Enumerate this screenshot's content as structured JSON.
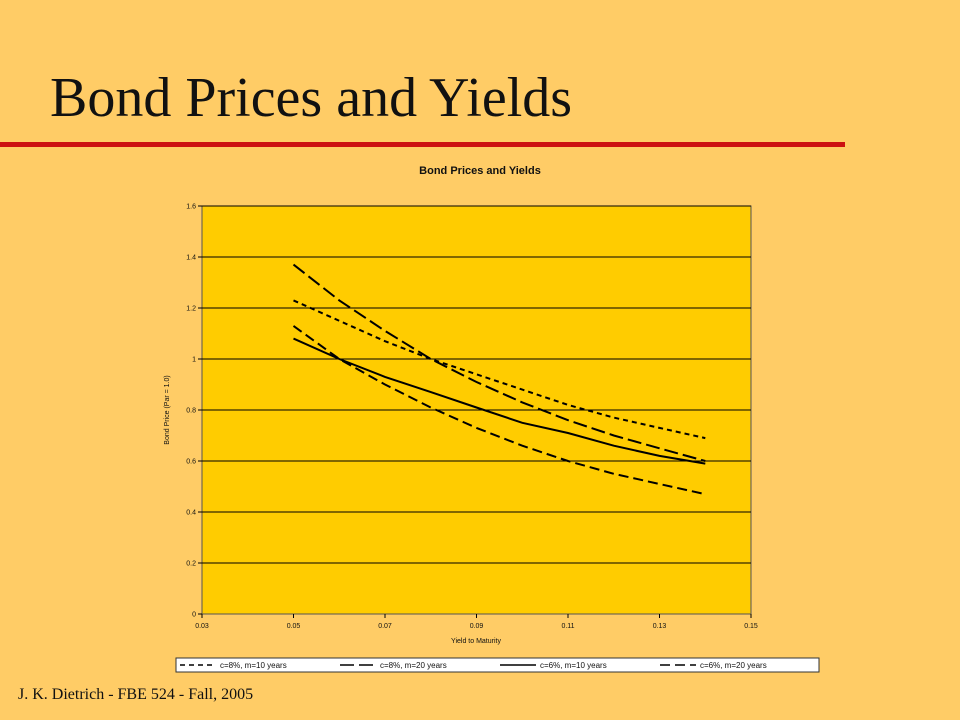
{
  "slide": {
    "title": "Bond Prices and Yields",
    "footer": "J. K. Dietrich - FBE 524 - Fall, 2005"
  },
  "colors": {
    "background": "#FFCC66",
    "plot_area": "#FFCC00",
    "title_rule": "#CC1111",
    "series": "#000000"
  },
  "chart_data": {
    "type": "line",
    "title": "Bond Prices and Yields",
    "xlabel": "Yield to Maturity",
    "ylabel": "Bond Price (Par = 1.0)",
    "xlim": [
      0.03,
      0.15
    ],
    "ylim": [
      0,
      1.6
    ],
    "xticks": [
      "0.03",
      "0.05",
      "0.07",
      "0.09",
      "0.11",
      "0.13",
      "0.15"
    ],
    "yticks": [
      "0",
      "0.2",
      "0.4",
      "0.6",
      "0.8",
      "1",
      "1.2",
      "1.4",
      "1.6"
    ],
    "grid": "horizontal",
    "legend_position": "bottom",
    "x": [
      0.05,
      0.06,
      0.07,
      0.08,
      0.09,
      0.1,
      0.11,
      0.12,
      0.13,
      0.14
    ],
    "series": [
      {
        "name": "c=8%, m=10 years",
        "dash": "short-dash",
        "values": [
          1.23,
          1.15,
          1.07,
          1.0,
          0.94,
          0.88,
          0.82,
          0.77,
          0.73,
          0.69
        ]
      },
      {
        "name": "c=8%, m=20 years",
        "dash": "long-dash",
        "values": [
          1.37,
          1.23,
          1.11,
          1.0,
          0.91,
          0.83,
          0.76,
          0.7,
          0.65,
          0.6
        ]
      },
      {
        "name": "c=6%, m=10 years",
        "dash": "solid",
        "values": [
          1.08,
          1.0,
          0.93,
          0.87,
          0.81,
          0.75,
          0.71,
          0.66,
          0.62,
          0.59
        ]
      },
      {
        "name": "c=6%, m=20 years",
        "dash": "dash",
        "values": [
          1.13,
          1.0,
          0.9,
          0.81,
          0.73,
          0.66,
          0.6,
          0.55,
          0.51,
          0.47
        ]
      }
    ]
  }
}
